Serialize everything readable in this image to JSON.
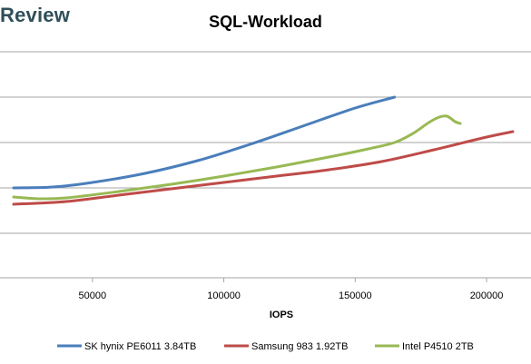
{
  "brand": {
    "text": "Review"
  },
  "chart_data": {
    "type": "line",
    "title": "SQL-Workload",
    "xlabel": "IOPS",
    "ylabel": "",
    "xlim": [
      20000,
      210000
    ],
    "x_ticks": [
      50000,
      100000,
      150000,
      200000
    ],
    "x_tick_labels": [
      "50000",
      "100000",
      "150000",
      "200000"
    ],
    "grid": "horizontal",
    "legend_position": "bottom",
    "series": [
      {
        "name": "SK hynix PE6011 3.84TB",
        "color": "#4a7ebb",
        "points": [
          [
            20000,
            10.0
          ],
          [
            35000,
            10.1
          ],
          [
            50000,
            10.6
          ],
          [
            70000,
            11.6
          ],
          [
            90000,
            13.0
          ],
          [
            110000,
            14.8
          ],
          [
            130000,
            16.8
          ],
          [
            150000,
            18.8
          ],
          [
            165000,
            20.0
          ]
        ]
      },
      {
        "name": "Samsung 983 1.92TB",
        "color": "#be4b48",
        "points": [
          [
            20000,
            8.2
          ],
          [
            40000,
            8.5
          ],
          [
            60000,
            9.2
          ],
          [
            80000,
            9.9
          ],
          [
            100000,
            10.6
          ],
          [
            120000,
            11.3
          ],
          [
            140000,
            12.0
          ],
          [
            160000,
            12.9
          ],
          [
            180000,
            14.2
          ],
          [
            200000,
            15.6
          ],
          [
            210000,
            16.2
          ]
        ]
      },
      {
        "name": "Intel P4510 2TB",
        "color": "#98b954",
        "points": [
          [
            20000,
            9.0
          ],
          [
            30000,
            8.8
          ],
          [
            40000,
            8.9
          ],
          [
            60000,
            9.6
          ],
          [
            80000,
            10.4
          ],
          [
            100000,
            11.3
          ],
          [
            120000,
            12.3
          ],
          [
            140000,
            13.4
          ],
          [
            155000,
            14.3
          ],
          [
            165000,
            15.0
          ],
          [
            172000,
            16.0
          ],
          [
            178000,
            17.2
          ],
          [
            182000,
            17.8
          ],
          [
            185000,
            17.9
          ],
          [
            188000,
            17.3
          ],
          [
            190000,
            17.1
          ]
        ]
      }
    ]
  }
}
